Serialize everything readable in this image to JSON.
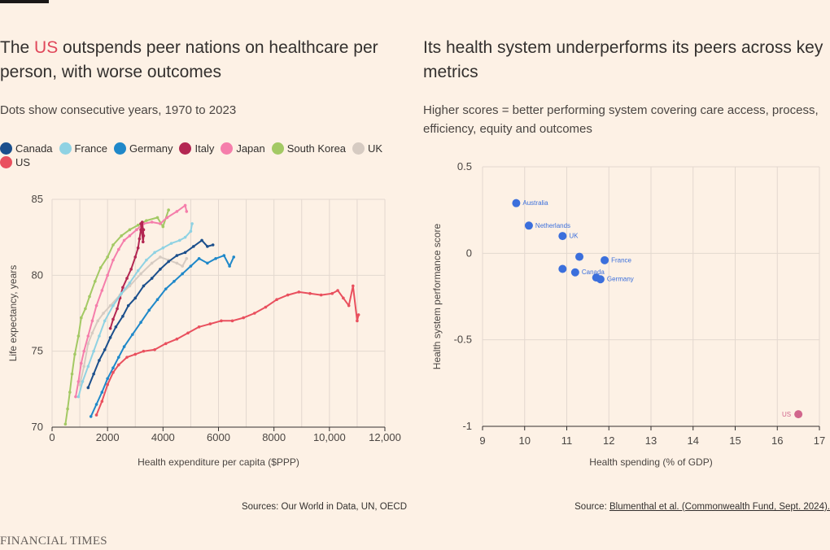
{
  "left": {
    "title_before": "The ",
    "title_highlight": "US",
    "title_after": " outspends peer nations on healthcare per person, with worse outcomes",
    "subtitle": "Dots show consecutive years, 1970 to 2023",
    "source": "Sources: Our World in Data, UN, OECD"
  },
  "right": {
    "title": "Its health system underperforms its peers across key metrics",
    "subtitle": "Higher scores = better performing system covering care access, process, efficiency, equity and outcomes",
    "source_prefix": "Source: ",
    "source_link": "Blumenthal et al. (Commonwealth Fund, Sept. 2024)."
  },
  "brand": "FINANCIAL TIMES",
  "colors": {
    "Canada": "#1b4f8c",
    "France": "#8fd2e3",
    "Germany": "#1f88c9",
    "Italy": "#b32752",
    "Japan": "#f57eab",
    "South Korea": "#a3c964",
    "UK": "#d6cbc2",
    "US": "#e9505e",
    "scatter_point": "#3b6fdc",
    "scatter_us": "#d1668c"
  },
  "chart_data": [
    {
      "type": "line",
      "xlabel": "Health expenditure per capita ($PPP)",
      "ylabel": "Life expectancy, years",
      "xlim": [
        0,
        12000
      ],
      "ylim": [
        70,
        85
      ],
      "xticks": [
        "0",
        "2000",
        "4000",
        "6000",
        "8000",
        "10,000",
        "12,000"
      ],
      "yticks": [
        "70",
        "75",
        "80",
        "85"
      ],
      "grid": true,
      "legend_position": "top",
      "series": [
        {
          "name": "South Korea",
          "points": [
            [
              480,
              70.2
            ],
            [
              560,
              71.2
            ],
            [
              640,
              72.3
            ],
            [
              720,
              73.5
            ],
            [
              820,
              74.8
            ],
            [
              950,
              76
            ],
            [
              1050,
              77.2
            ],
            [
              1200,
              77.8
            ],
            [
              1350,
              78.6
            ],
            [
              1550,
              79.6
            ],
            [
              1750,
              80.5
            ],
            [
              2000,
              81.2
            ],
            [
              2200,
              82
            ],
            [
              2500,
              82.6
            ],
            [
              2800,
              83
            ],
            [
              3100,
              83.3
            ],
            [
              3400,
              83.6
            ],
            [
              3800,
              83.8
            ],
            [
              4000,
              83.2
            ],
            [
              4200,
              84.3
            ]
          ]
        },
        {
          "name": "Japan",
          "points": [
            [
              850,
              72
            ],
            [
              950,
              73
            ],
            [
              1050,
              74.2
            ],
            [
              1150,
              75
            ],
            [
              1300,
              76
            ],
            [
              1450,
              77
            ],
            [
              1600,
              78
            ],
            [
              1800,
              79
            ],
            [
              2000,
              80
            ],
            [
              2200,
              81
            ],
            [
              2400,
              81.7
            ],
            [
              2600,
              82.3
            ],
            [
              2800,
              82.6
            ],
            [
              3050,
              83
            ],
            [
              3300,
              83.4
            ],
            [
              3600,
              83.5
            ],
            [
              3900,
              83.4
            ],
            [
              4150,
              83.8
            ],
            [
              4500,
              84.2
            ],
            [
              4800,
              84.6
            ],
            [
              4850,
              84.2
            ]
          ]
        },
        {
          "name": "Italy",
          "points": [
            [
              2100,
              76.5
            ],
            [
              2200,
              77.1
            ],
            [
              2350,
              77.8
            ],
            [
              2450,
              78.5
            ],
            [
              2550,
              79.2
            ],
            [
              2700,
              79.8
            ],
            [
              2850,
              80.4
            ],
            [
              3000,
              81.2
            ],
            [
              3100,
              81.8
            ],
            [
              3150,
              82.4
            ],
            [
              3200,
              83
            ],
            [
              3250,
              83.5
            ],
            [
              3300,
              82.6
            ],
            [
              3280,
              82.2
            ],
            [
              3200,
              83.4
            ],
            [
              3300,
              83
            ]
          ]
        },
        {
          "name": "UK",
          "points": [
            [
              1000,
              72.8
            ],
            [
              1150,
              74
            ],
            [
              1300,
              75.5
            ],
            [
              1450,
              76.2
            ],
            [
              1650,
              77
            ],
            [
              1850,
              77.5
            ],
            [
              2100,
              78
            ],
            [
              2450,
              78.7
            ],
            [
              2800,
              79.3
            ],
            [
              3200,
              80.1
            ],
            [
              3600,
              80.8
            ],
            [
              3900,
              81.2
            ],
            [
              4200,
              81
            ],
            [
              4500,
              80.8
            ],
            [
              4700,
              80.6
            ],
            [
              4850,
              81.1
            ]
          ]
        },
        {
          "name": "France",
          "points": [
            [
              950,
              72
            ],
            [
              1100,
              73
            ],
            [
              1300,
              74
            ],
            [
              1500,
              75
            ],
            [
              1700,
              76
            ],
            [
              1900,
              77
            ],
            [
              2200,
              78
            ],
            [
              2500,
              78.8
            ],
            [
              2800,
              79.5
            ],
            [
              3100,
              80.3
            ],
            [
              3400,
              81
            ],
            [
              3700,
              81.5
            ],
            [
              4000,
              81.8
            ],
            [
              4300,
              82.1
            ],
            [
              4600,
              82.3
            ],
            [
              4800,
              82.5
            ],
            [
              5000,
              82.9
            ],
            [
              5050,
              83.4
            ]
          ]
        },
        {
          "name": "Germany",
          "points": [
            [
              1400,
              70.7
            ],
            [
              1600,
              71.5
            ],
            [
              1800,
              72.3
            ],
            [
              2000,
              73.2
            ],
            [
              2200,
              73.9
            ],
            [
              2400,
              74.6
            ],
            [
              2600,
              75.3
            ],
            [
              2900,
              76.1
            ],
            [
              3200,
              76.9
            ],
            [
              3500,
              77.7
            ],
            [
              3800,
              78.4
            ],
            [
              4100,
              79.1
            ],
            [
              4400,
              79.6
            ],
            [
              4700,
              80.1
            ],
            [
              5000,
              80.6
            ],
            [
              5300,
              81.1
            ],
            [
              5600,
              80.8
            ],
            [
              5900,
              81.1
            ],
            [
              6200,
              81.3
            ],
            [
              6400,
              80.6
            ],
            [
              6550,
              81.2
            ]
          ]
        },
        {
          "name": "Canada",
          "points": [
            [
              1300,
              72.6
            ],
            [
              1500,
              73.5
            ],
            [
              1700,
              74.4
            ],
            [
              1900,
              75.1
            ],
            [
              2100,
              75.9
            ],
            [
              2300,
              76.6
            ],
            [
              2550,
              77.3
            ],
            [
              2750,
              78
            ],
            [
              3000,
              78.5
            ],
            [
              3300,
              79.3
            ],
            [
              3600,
              79.8
            ],
            [
              3900,
              80.4
            ],
            [
              4200,
              80.9
            ],
            [
              4500,
              81.3
            ],
            [
              4800,
              81.5
            ],
            [
              5100,
              81.9
            ],
            [
              5400,
              82.3
            ],
            [
              5600,
              81.9
            ],
            [
              5800,
              82
            ]
          ]
        },
        {
          "name": "US",
          "points": [
            [
              1600,
              70.8
            ],
            [
              1800,
              71.7
            ],
            [
              2000,
              72.8
            ],
            [
              2200,
              73.6
            ],
            [
              2400,
              74.1
            ],
            [
              2700,
              74.6
            ],
            [
              3000,
              74.8
            ],
            [
              3300,
              75
            ],
            [
              3700,
              75.1
            ],
            [
              4100,
              75.5
            ],
            [
              4500,
              75.8
            ],
            [
              4900,
              76.2
            ],
            [
              5300,
              76.6
            ],
            [
              5700,
              76.8
            ],
            [
              6100,
              77
            ],
            [
              6500,
              77
            ],
            [
              6900,
              77.2
            ],
            [
              7300,
              77.5
            ],
            [
              7700,
              77.9
            ],
            [
              8100,
              78.4
            ],
            [
              8500,
              78.7
            ],
            [
              8900,
              78.9
            ],
            [
              9300,
              78.8
            ],
            [
              9700,
              78.7
            ],
            [
              10100,
              78.8
            ],
            [
              10300,
              79
            ],
            [
              10500,
              78.5
            ],
            [
              10700,
              78
            ],
            [
              10850,
              79.3
            ],
            [
              11000,
              77
            ],
            [
              11050,
              77.4
            ]
          ]
        }
      ]
    },
    {
      "type": "scatter",
      "xlabel": "Health spending (% of GDP)",
      "ylabel": "Health system performance score",
      "xlim": [
        9,
        17
      ],
      "ylim": [
        -1,
        0.5
      ],
      "xticks": [
        "9",
        "10",
        "11",
        "12",
        "13",
        "14",
        "15",
        "16",
        "17"
      ],
      "yticks": [
        "0.5",
        "0",
        "-0.5",
        "-1"
      ],
      "grid": true,
      "points": [
        {
          "x": 9.8,
          "y": 0.29,
          "label": "Australia"
        },
        {
          "x": 10.1,
          "y": 0.16,
          "label": "Netherlands"
        },
        {
          "x": 10.9,
          "y": 0.1,
          "label": "UK"
        },
        {
          "x": 11.3,
          "y": -0.02,
          "label": ""
        },
        {
          "x": 11.9,
          "y": -0.04,
          "label": "France"
        },
        {
          "x": 10.9,
          "y": -0.09,
          "label": ""
        },
        {
          "x": 11.2,
          "y": -0.11,
          "label": "Canada"
        },
        {
          "x": 11.7,
          "y": -0.14,
          "label": ""
        },
        {
          "x": 11.8,
          "y": -0.15,
          "label": "Germany"
        },
        {
          "x": 16.5,
          "y": -0.93,
          "label": "US"
        }
      ]
    }
  ]
}
